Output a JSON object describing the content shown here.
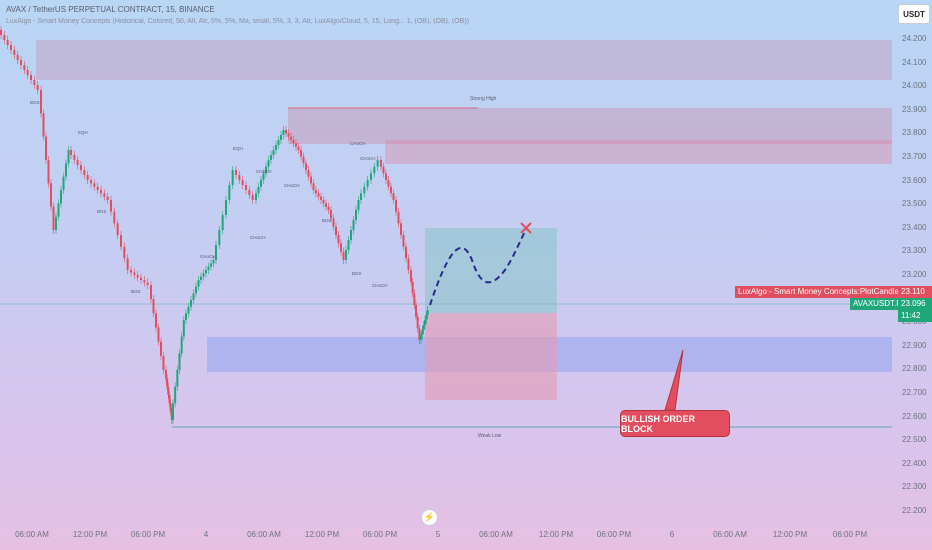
{
  "header": {
    "title": "AVAX / TetherUS PERPETUAL CONTRACT, 15, BINANCE",
    "indicator": "LuxAlgo - Smart Money Concepts (Historical, Colored, 50, All, Atr, 5%, 5%, Ma, small, 5%, 3, 3, Atr, LuxAlgo/Cloud, 5, 15, Long... 1, (OB), (OB), (OB))"
  },
  "currency": "USDT",
  "price_axis": {
    "ticks": [
      "24.200",
      "24.100",
      "24.000",
      "23.900",
      "23.800",
      "23.700",
      "23.600",
      "23.500",
      "23.400",
      "23.300",
      "23.200",
      "23.100",
      "23.000",
      "22.900",
      "22.800",
      "22.700",
      "22.600",
      "22.500",
      "22.400",
      "22.300",
      "22.200"
    ],
    "tag_indicator": {
      "label": "LuxAlgo - Smart Money Concepts:PlotCandle",
      "value": "23.110",
      "color": "#e24e5f"
    },
    "tag_symbol": {
      "label": "AVAXUSDT.P",
      "value": "23.096",
      "countdown": "11:42",
      "color": "#1fa77a"
    }
  },
  "time_axis": [
    "06:00 AM",
    "12:00 PM",
    "06:00 PM",
    "4",
    "06:00 AM",
    "12:00 PM",
    "06:00 PM",
    "5",
    "06:00 AM",
    "12:00 PM",
    "06:00 PM",
    "6",
    "06:00 AM",
    "12:00 PM",
    "06:00 PM"
  ],
  "annotations": {
    "strong_high": "Strong High",
    "weak_low": "Weak Low",
    "structure": [
      "BOS",
      "EQH",
      "BOS",
      "BOS",
      "EQH",
      "CHoCH",
      "CHoCH",
      "CHoCH",
      "BOS",
      "CHoCH",
      "CHoCH",
      "BOS",
      "CHoCH",
      "CHoCH"
    ]
  },
  "callout": "BULLISH ORDER BLOCK",
  "icons": {
    "replay": "lightning-icon",
    "target": "x-mark-icon"
  },
  "colors": {
    "up": "#1fa77a",
    "down": "#e24e5f",
    "ob_bull": "#8ea0f0",
    "zone_red": "#e59bb3"
  }
}
